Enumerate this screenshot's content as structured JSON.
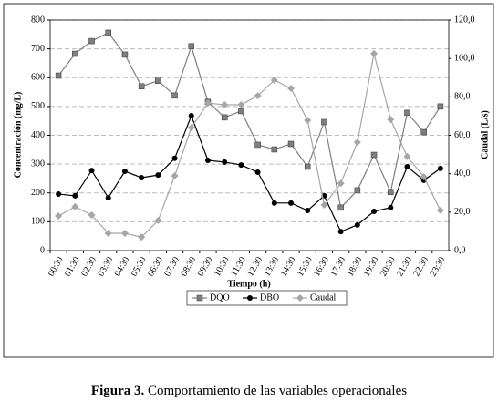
{
  "chart_data": {
    "type": "line",
    "categories": [
      "00:30",
      "01:30",
      "02:30",
      "03:30",
      "04:30",
      "05:30",
      "06:30",
      "07:30",
      "08:30",
      "09:30",
      "10:30",
      "11:30",
      "12:30",
      "13:30",
      "14:30",
      "15:30",
      "16:30",
      "17:30",
      "18:30",
      "19:30",
      "20:30",
      "21:30",
      "22:30",
      "23:30"
    ],
    "series": [
      {
        "name": "DQO",
        "color": "#7f7f7f",
        "marker": "square",
        "values": [
          607,
          683,
          727,
          756,
          680,
          570,
          589,
          538,
          709,
          516,
          462,
          484,
          367,
          351,
          370,
          291,
          446,
          149,
          209,
          332,
          203,
          478,
          411,
          500
        ]
      },
      {
        "name": "DBO",
        "color": "#000000",
        "marker": "circle",
        "values": [
          196,
          190,
          278,
          183,
          275,
          253,
          262,
          320,
          468,
          313,
          307,
          297,
          272,
          165,
          165,
          139,
          190,
          66,
          89,
          136,
          149,
          291,
          244,
          285
        ]
      },
      {
        "name": "Caudal",
        "color": "#a6a6a6",
        "marker": "diamond",
        "axis": "y2",
        "values": [
          18,
          22.8,
          18.5,
          9,
          9,
          7,
          15.7,
          38.9,
          64,
          76.8,
          75.9,
          75.9,
          80.6,
          88.7,
          84.4,
          67.8,
          23.7,
          35,
          56.4,
          102.5,
          68.3,
          48.9,
          38.4,
          20.9
        ]
      }
    ],
    "ylim": [
      0,
      800
    ],
    "yticks": [
      0,
      100,
      200,
      300,
      400,
      500,
      600,
      700,
      800
    ],
    "y2lim": [
      0,
      120
    ],
    "y2ticks": [
      {
        "value": 0,
        "label": "0,0"
      },
      {
        "value": 20,
        "label": "20,0"
      },
      {
        "value": 40,
        "label": "40,0"
      },
      {
        "value": 60,
        "label": "60,0"
      },
      {
        "value": 80,
        "label": "80,0"
      },
      {
        "value": 100,
        "label": "100,0"
      },
      {
        "value": 120,
        "label": "120,0"
      }
    ],
    "ylabel": "Concentración (mg/L)",
    "y2label": "Caudal (L/s)",
    "xlabel": "Tiempo (h)",
    "grid": true,
    "legend": "bottom",
    "caption_label": "Figura 3.",
    "caption_text": "Comportamiento de las variables operacionales"
  }
}
